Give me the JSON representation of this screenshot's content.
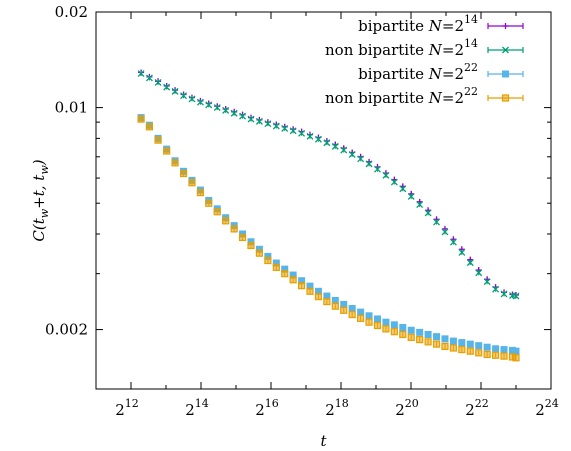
{
  "chart_data": {
    "type": "scatter",
    "x_scale": "log2",
    "y_scale": "log",
    "xlim": [
      2048,
      16777216
    ],
    "ylim": [
      0.0013,
      0.02
    ],
    "x_ticks": [
      {
        "value": 4096,
        "base": "2",
        "exp": "12"
      },
      {
        "value": 16384,
        "base": "2",
        "exp": "14"
      },
      {
        "value": 65536,
        "base": "2",
        "exp": "16"
      },
      {
        "value": 262144,
        "base": "2",
        "exp": "18"
      },
      {
        "value": 1048576,
        "base": "2",
        "exp": "20"
      },
      {
        "value": 4194304,
        "base": "2",
        "exp": "22"
      },
      {
        "value": 16777216,
        "base": "2",
        "exp": "24"
      }
    ],
    "y_ticks": [
      {
        "value": 0.002,
        "label": "0.002"
      },
      {
        "value": 0.01,
        "label": "0.01"
      },
      {
        "value": 0.02,
        "label": "0.02"
      }
    ],
    "xlabel": "t",
    "ylabel": "C(t_w+t, t_w)",
    "ylabel_parts": {
      "c": "C(t",
      "sub1": "w",
      "mid": "+t, t",
      "sub2": "w",
      "end": ")"
    },
    "legend_position": "top-right",
    "grid": false,
    "series": [
      {
        "name": "bipartite N=2^14",
        "label": {
          "text": "bipartite ",
          "var": "N",
          "eq": "=2",
          "exp": "14"
        },
        "color": "#9400D3",
        "marker": "plus",
        "x": [
          5000,
          5900,
          7000,
          8300,
          9800,
          11600,
          13700,
          16200,
          19100,
          22600,
          26700,
          31600,
          37300,
          44100,
          52100,
          61600,
          72800,
          86000,
          101600,
          120100,
          141900,
          167700,
          198200,
          234200,
          276800,
          327100,
          386600,
          456900,
          540000,
          638200,
          754200,
          891300,
          1053400,
          1244900,
          1471200,
          1738700,
          2054800,
          2428400,
          2869900,
          3391700,
          4008400,
          4737200,
          5598500,
          6616400,
          7819400,
          8388608
        ],
        "values": [
          0.0129,
          0.0125,
          0.0121,
          0.0117,
          0.01135,
          0.011,
          0.01075,
          0.0105,
          0.0103,
          0.0101,
          0.0099,
          0.0097,
          0.0095,
          0.0093,
          0.00915,
          0.009,
          0.00885,
          0.0087,
          0.00855,
          0.0084,
          0.00822,
          0.00805,
          0.00785,
          0.00765,
          0.00745,
          0.00722,
          0.007,
          0.00675,
          0.0065,
          0.00622,
          0.00593,
          0.00565,
          0.00535,
          0.00505,
          0.00475,
          0.00445,
          0.00415,
          0.00385,
          0.00358,
          0.00332,
          0.00308,
          0.00288,
          0.00272,
          0.00262,
          0.00258,
          0.00257
        ]
      },
      {
        "name": "non bipartite N=2^14",
        "label": {
          "text": "non bipartite ",
          "var": "N",
          "eq": "=2",
          "exp": "14"
        },
        "color": "#009E73",
        "marker": "cross",
        "x": [
          5000,
          5900,
          7000,
          8300,
          9800,
          11600,
          13700,
          16200,
          19100,
          22600,
          26700,
          31600,
          37300,
          44100,
          52100,
          61600,
          72800,
          86000,
          101600,
          120100,
          141900,
          167700,
          198200,
          234200,
          276800,
          327100,
          386600,
          456900,
          540000,
          638200,
          754200,
          891300,
          1053400,
          1244900,
          1471200,
          1738700,
          2054800,
          2428400,
          2869900,
          3391700,
          4008400,
          4737200,
          5598500,
          6616400,
          7819400,
          8388608
        ],
        "values": [
          0.0128,
          0.0124,
          0.012,
          0.0116,
          0.01125,
          0.0109,
          0.01065,
          0.0104,
          0.0102,
          0.01,
          0.0098,
          0.0096,
          0.0094,
          0.0092,
          0.00905,
          0.0089,
          0.00875,
          0.0086,
          0.00845,
          0.0083,
          0.00812,
          0.00795,
          0.00775,
          0.00755,
          0.00735,
          0.00712,
          0.0069,
          0.00665,
          0.0064,
          0.00612,
          0.00583,
          0.00555,
          0.00525,
          0.00495,
          0.00466,
          0.00436,
          0.00406,
          0.00377,
          0.0035,
          0.00325,
          0.00302,
          0.00283,
          0.00268,
          0.00259,
          0.00256,
          0.00255
        ]
      },
      {
        "name": "bipartite N=2^22",
        "label": {
          "text": "bipartite ",
          "var": "N",
          "eq": "=2",
          "exp": "22"
        },
        "color": "#56B4E9",
        "marker": "box-filled",
        "x": [
          5000,
          5900,
          7000,
          8300,
          9800,
          11600,
          13700,
          16200,
          19100,
          22600,
          26700,
          31600,
          37300,
          44100,
          52100,
          61600,
          72800,
          86000,
          101600,
          120100,
          141900,
          167700,
          198200,
          234200,
          276800,
          327100,
          386600,
          456900,
          540000,
          638200,
          754200,
          891300,
          1053400,
          1244900,
          1471200,
          1738700,
          2054800,
          2428400,
          2869900,
          3391700,
          4008400,
          4737200,
          5598500,
          6616400,
          7819400,
          8388608
        ],
        "values": [
          0.0093,
          0.0088,
          0.008,
          0.0074,
          0.0068,
          0.0063,
          0.0059,
          0.0055,
          0.0051,
          0.0048,
          0.0045,
          0.00425,
          0.004,
          0.00378,
          0.00358,
          0.0034,
          0.00324,
          0.0031,
          0.00297,
          0.00285,
          0.00274,
          0.00264,
          0.00255,
          0.00247,
          0.0024,
          0.00233,
          0.00227,
          0.00221,
          0.00216,
          0.00211,
          0.00207,
          0.00203,
          0.00199,
          0.00196,
          0.00193,
          0.0019,
          0.00187,
          0.00184,
          0.00182,
          0.0018,
          0.00178,
          0.00176,
          0.00174,
          0.00173,
          0.00172,
          0.00171
        ]
      },
      {
        "name": "non bipartite N=2^22",
        "label": {
          "text": "non bipartite ",
          "var": "N",
          "eq": "=2",
          "exp": "22"
        },
        "color": "#E69F00",
        "marker": "box",
        "x": [
          5000,
          5900,
          7000,
          8300,
          9800,
          11600,
          13700,
          16200,
          19100,
          22600,
          26700,
          31600,
          37300,
          44100,
          52100,
          61600,
          72800,
          86000,
          101600,
          120100,
          141900,
          167700,
          198200,
          234200,
          276800,
          327100,
          386600,
          456900,
          540000,
          638200,
          754200,
          891300,
          1053400,
          1244900,
          1471200,
          1738700,
          2054800,
          2428400,
          2869900,
          3391700,
          4008400,
          4737200,
          5598500,
          6616400,
          7819400,
          8388608
        ],
        "values": [
          0.0092,
          0.0087,
          0.0079,
          0.0073,
          0.0067,
          0.0062,
          0.0058,
          0.0054,
          0.005,
          0.0047,
          0.0044,
          0.00415,
          0.0039,
          0.00368,
          0.00348,
          0.0033,
          0.00314,
          0.003,
          0.00287,
          0.00275,
          0.00264,
          0.00254,
          0.00245,
          0.00237,
          0.0023,
          0.00223,
          0.00217,
          0.00211,
          0.00206,
          0.00201,
          0.00197,
          0.00193,
          0.00189,
          0.00186,
          0.00183,
          0.0018,
          0.00177,
          0.00175,
          0.00173,
          0.00171,
          0.00169,
          0.00167,
          0.00166,
          0.00165,
          0.00164,
          0.00163
        ]
      }
    ]
  }
}
